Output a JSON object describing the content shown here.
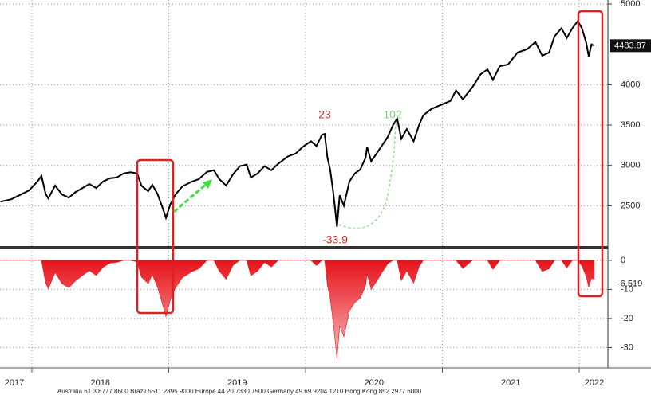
{
  "chart_data": [
    {
      "type": "line",
      "x": [
        2017.77,
        2017.85,
        2017.92,
        2017.98,
        2018.04,
        2018.07,
        2018.1,
        2018.12,
        2018.17,
        2018.22,
        2018.27,
        2018.32,
        2018.37,
        2018.42,
        2018.47,
        2018.52,
        2018.57,
        2018.62,
        2018.67,
        2018.72,
        2018.77,
        2018.8,
        2018.85,
        2018.88,
        2018.92,
        2018.96,
        2018.98,
        2019.01,
        2019.05,
        2019.1,
        2019.17,
        2019.22,
        2019.28,
        2019.33,
        2019.37,
        2019.42,
        2019.47,
        2019.52,
        2019.57,
        2019.6,
        2019.65,
        2019.7,
        2019.75,
        2019.8,
        2019.87,
        2019.93,
        2019.98,
        2020.04,
        2020.08,
        2020.12,
        2020.14,
        2020.16,
        2020.18,
        2020.2,
        2020.22,
        2020.23,
        2020.25,
        2020.28,
        2020.32,
        2020.36,
        2020.4,
        2020.44,
        2020.45,
        2020.48,
        2020.52,
        2020.56,
        2020.6,
        2020.64,
        2020.67,
        2020.7,
        2020.74,
        2020.79,
        2020.83,
        2020.86,
        2020.92,
        2020.99,
        2021.06,
        2021.1,
        2021.15,
        2021.22,
        2021.28,
        2021.33,
        2021.37,
        2021.42,
        2021.48,
        2021.55,
        2021.62,
        2021.68,
        2021.73,
        2021.78,
        2021.82,
        2021.87,
        2021.91,
        2021.95,
        2021.99,
        2022.02,
        2022.05,
        2022.07,
        2022.09,
        2022.11
      ],
      "series": [
        {
          "color": "#000000",
          "values": [
            2550,
            2580,
            2640,
            2690,
            2800,
            2870,
            2650,
            2590,
            2750,
            2640,
            2600,
            2670,
            2720,
            2770,
            2720,
            2800,
            2840,
            2850,
            2900,
            2915,
            2900,
            2750,
            2680,
            2760,
            2640,
            2450,
            2350,
            2510,
            2640,
            2740,
            2800,
            2830,
            2920,
            2940,
            2830,
            2750,
            2890,
            2990,
            3010,
            2850,
            2900,
            2990,
            2940,
            3020,
            3110,
            3150,
            3230,
            3300,
            3240,
            3380,
            3390,
            3100,
            2950,
            2700,
            2400,
            2240,
            2630,
            2500,
            2800,
            2900,
            2950,
            3100,
            3230,
            3050,
            3150,
            3250,
            3350,
            3500,
            3580,
            3330,
            3450,
            3300,
            3500,
            3620,
            3700,
            3750,
            3800,
            3930,
            3820,
            3970,
            4130,
            4190,
            4060,
            4230,
            4250,
            4400,
            4440,
            4530,
            4360,
            4400,
            4600,
            4700,
            4580,
            4700,
            4790,
            4700,
            4530,
            4350,
            4500,
            4483.87
          ]
        }
      ],
      "xlim": [
        2017.767,
        2022.21
      ],
      "xticks": [
        {
          "value": 2017,
          "label": "2017"
        },
        {
          "value": 2018,
          "label": "2018"
        },
        {
          "value": 2019,
          "label": "2019"
        },
        {
          "value": 2020,
          "label": "2020"
        },
        {
          "value": 2021,
          "label": "2021"
        },
        {
          "value": 2022,
          "label": "2022"
        }
      ],
      "ylim": [
        2000,
        5050
      ],
      "yticks": [
        2500,
        3000,
        3500,
        4000,
        5000
      ],
      "grid": true,
      "annotations": [
        {
          "text": "23",
          "color": "#d9322b"
        },
        {
          "text": "102",
          "color": "#7fd67a"
        },
        {
          "text": "-33.9",
          "color": "#d9322b"
        }
      ]
    },
    {
      "type": "area",
      "x": [
        2017.77,
        2017.85,
        2017.92,
        2017.98,
        2018.04,
        2018.07,
        2018.1,
        2018.12,
        2018.17,
        2018.22,
        2018.27,
        2018.32,
        2018.37,
        2018.42,
        2018.47,
        2018.52,
        2018.57,
        2018.62,
        2018.67,
        2018.72,
        2018.77,
        2018.8,
        2018.85,
        2018.88,
        2018.92,
        2018.96,
        2018.98,
        2019.01,
        2019.05,
        2019.1,
        2019.17,
        2019.22,
        2019.28,
        2019.33,
        2019.37,
        2019.42,
        2019.47,
        2019.52,
        2019.57,
        2019.6,
        2019.65,
        2019.7,
        2019.75,
        2019.8,
        2019.87,
        2019.93,
        2019.98,
        2020.04,
        2020.08,
        2020.12,
        2020.14,
        2020.16,
        2020.18,
        2020.2,
        2020.22,
        2020.23,
        2020.25,
        2020.28,
        2020.32,
        2020.36,
        2020.4,
        2020.44,
        2020.45,
        2020.48,
        2020.52,
        2020.56,
        2020.6,
        2020.64,
        2020.67,
        2020.7,
        2020.74,
        2020.79,
        2020.83,
        2020.86,
        2020.92,
        2020.99,
        2021.06,
        2021.1,
        2021.15,
        2021.22,
        2021.28,
        2021.33,
        2021.37,
        2021.42,
        2021.48,
        2021.55,
        2021.62,
        2021.68,
        2021.73,
        2021.78,
        2021.82,
        2021.87,
        2021.91,
        2021.95,
        2021.99,
        2022.02,
        2022.05,
        2022.07,
        2022.09,
        2022.11
      ],
      "series": [
        {
          "color": "#e8131b",
          "values": [
            0,
            0,
            0,
            0,
            0,
            0,
            -7.7,
            -9.8,
            -4.2,
            -8.0,
            -9.4,
            -7.0,
            -5.2,
            -3.5,
            -5.2,
            -2.4,
            -1.0,
            -0.7,
            0,
            0,
            -0.5,
            -5.7,
            -8.0,
            -4.9,
            -9.4,
            -16.0,
            -19.4,
            -13.9,
            -9.4,
            -6.0,
            -3.9,
            -2.9,
            0,
            0,
            -3.7,
            -6.5,
            -1.7,
            0,
            0,
            -5.3,
            -3.7,
            -0.7,
            -2.3,
            0,
            0,
            0,
            0,
            0,
            -1.8,
            0,
            0,
            -8.6,
            -13.0,
            -20.4,
            -29.2,
            -33.9,
            -22.4,
            -26.3,
            -17.4,
            -14.5,
            -13.0,
            -8.6,
            -4.7,
            -10.0,
            -7.1,
            -4.1,
            -1.2,
            0,
            0,
            -7.0,
            -3.6,
            -7.8,
            -2.2,
            0,
            0,
            0,
            0,
            0,
            -2.8,
            0,
            0,
            0,
            -3.1,
            0,
            0,
            0,
            0,
            0,
            -3.8,
            -2.9,
            0,
            0,
            -2.6,
            0,
            0,
            -1.9,
            -5.4,
            -9.2,
            -6.1,
            -6.519
          ]
        }
      ],
      "ylim": [
        -37,
        3.8
      ],
      "yticks": [
        0,
        -10,
        -20,
        -30
      ],
      "grid": true
    }
  ],
  "footer": "Australia 61 3 8777 8600 Brazil 5511 2395 9000 Europe 44 20 7330 7500 Germany 49 69 9204 1210 Hong Kong 852 2977 6000"
}
